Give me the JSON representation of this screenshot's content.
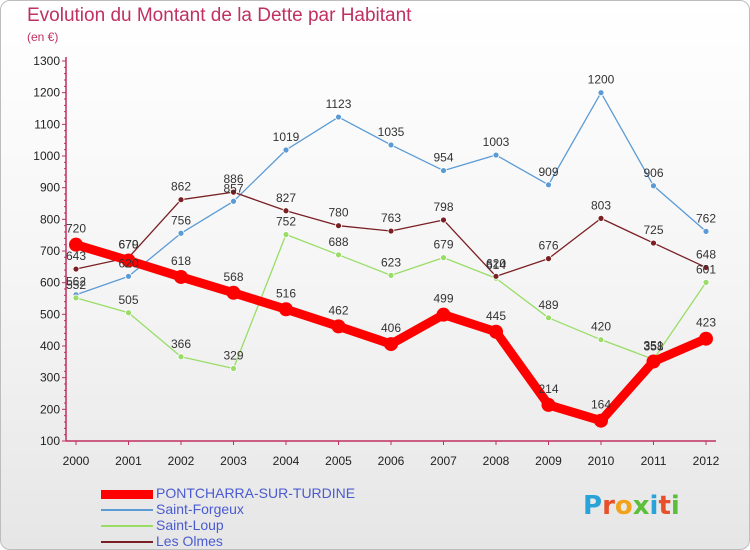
{
  "header": {
    "title": "Evolution du Montant de la Dette par Habitant",
    "subtitle": "(en €)"
  },
  "logo": {
    "text": "Proxiti",
    "letter_colors": [
      "#2aa3d8",
      "#e8502a",
      "#f2a31c",
      "#5bbf3a",
      "#2aa3d8",
      "#e8502a",
      "#5bbf3a"
    ]
  },
  "chart_data": {
    "type": "line",
    "title": "Evolution du Montant de la Dette par Habitant",
    "subtitle": "(en €)",
    "xlabel": "",
    "ylabel": "",
    "x": [
      "2000",
      "2001",
      "2002",
      "2003",
      "2004",
      "2005",
      "2006",
      "2007",
      "2008",
      "2009",
      "2010",
      "2011",
      "2012"
    ],
    "ylim": [
      100,
      1300
    ],
    "yticks": [
      100,
      200,
      300,
      400,
      500,
      600,
      700,
      800,
      900,
      1000,
      1100,
      1200,
      1300
    ],
    "grid": false,
    "legend_position": "bottom-left",
    "series": [
      {
        "name": "PONTCHARRA-SUR-TURDINE",
        "color": "#ff0000",
        "emphasis": true,
        "values": [
          720,
          670,
          618,
          568,
          516,
          462,
          406,
          499,
          445,
          214,
          164,
          351,
          423
        ],
        "labels": [
          "720",
          "670",
          "618",
          "568",
          "516",
          "462",
          "406",
          "499",
          "445",
          "214",
          "164",
          "351",
          "423"
        ]
      },
      {
        "name": "Saint-Forgeux",
        "color": "#5b9bd5",
        "emphasis": false,
        "values": [
          562,
          620,
          756,
          857,
          1019,
          1123,
          1035,
          954,
          1003,
          909,
          1200,
          906,
          762
        ],
        "labels": [
          "562",
          "620",
          "756",
          "857",
          "1019",
          "1123",
          "1035",
          "954",
          "1003",
          "909",
          "1200",
          "906",
          "762"
        ]
      },
      {
        "name": "Saint-Loup",
        "color": "#99dd66",
        "emphasis": false,
        "values": [
          552,
          505,
          366,
          329,
          752,
          688,
          623,
          679,
          614,
          489,
          420,
          358,
          601
        ],
        "labels": [
          "552",
          "505",
          "366",
          "329",
          "752",
          "688",
          "623",
          "679",
          "614",
          "489",
          "420",
          "358",
          "601"
        ]
      },
      {
        "name": "Les Olmes",
        "color": "#7a1f24",
        "emphasis": false,
        "values": [
          643,
          679,
          862,
          886,
          827,
          780,
          763,
          798,
          620,
          676,
          803,
          725,
          648
        ],
        "labels": [
          "643",
          "679",
          "862",
          "886",
          "827",
          "780",
          "763",
          "798",
          "620",
          "676",
          "803",
          "725",
          "648"
        ]
      }
    ]
  }
}
